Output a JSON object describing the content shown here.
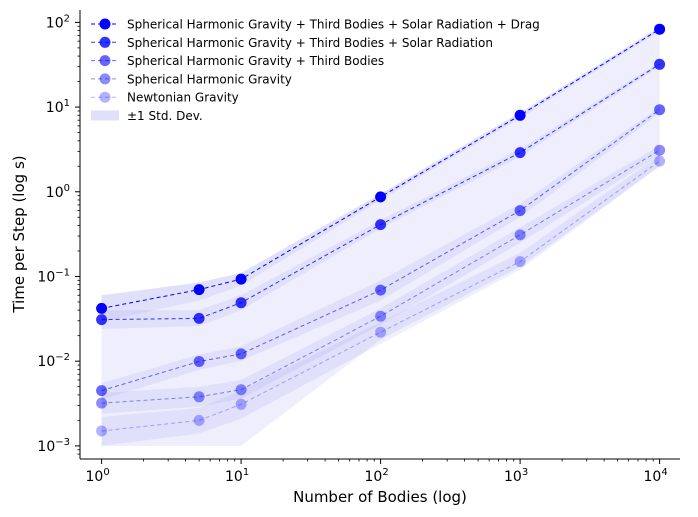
{
  "chart_data": {
    "type": "line",
    "xscale": "log",
    "yscale": "log",
    "xlabel": "Number of Bodies (log)",
    "ylabel": "Time per Step (log s)",
    "xlim": [
      0.7,
      14000
    ],
    "ylim": [
      0.0007,
      140
    ],
    "x": [
      1,
      5,
      10,
      100,
      1000,
      10000
    ],
    "x_ticks": [
      {
        "value": 1,
        "base": "10",
        "exp": "0"
      },
      {
        "value": 10,
        "base": "10",
        "exp": "1"
      },
      {
        "value": 100,
        "base": "10",
        "exp": "2"
      },
      {
        "value": 1000,
        "base": "10",
        "exp": "3"
      },
      {
        "value": 10000,
        "base": "10",
        "exp": "4"
      }
    ],
    "y_ticks": [
      {
        "value": 0.001,
        "base": "10",
        "exp": "−3"
      },
      {
        "value": 0.01,
        "base": "10",
        "exp": "−2"
      },
      {
        "value": 0.1,
        "base": "10",
        "exp": "−1"
      },
      {
        "value": 1,
        "base": "10",
        "exp": "0"
      },
      {
        "value": 10,
        "base": "10",
        "exp": "1"
      },
      {
        "value": 100,
        "base": "10",
        "exp": "2"
      }
    ],
    "series": [
      {
        "name": "Spherical Harmonic Gravity + Third Bodies + Solar Radiation + Drag",
        "opacity": 1.0,
        "values": [
          0.042,
          0.07,
          0.093,
          0.87,
          8.0,
          83
        ],
        "lower": [
          0.029,
          0.052,
          0.078,
          0.8,
          7.4,
          78
        ],
        "upper": [
          0.06,
          0.085,
          0.11,
          0.95,
          8.6,
          88
        ]
      },
      {
        "name": "Spherical Harmonic Gravity + Third Bodies + Solar Radiation",
        "opacity": 0.8,
        "values": [
          0.031,
          0.032,
          0.049,
          0.41,
          2.9,
          32
        ],
        "lower": [
          0.024,
          0.026,
          0.04,
          0.37,
          2.6,
          30
        ],
        "upper": [
          0.04,
          0.04,
          0.06,
          0.46,
          3.2,
          34
        ]
      },
      {
        "name": "Spherical Harmonic Gravity + Third Bodies",
        "opacity": 0.6,
        "values": [
          0.0045,
          0.0099,
          0.0122,
          0.069,
          0.6,
          9.3
        ],
        "lower": [
          0.0035,
          0.0079,
          0.0101,
          0.052,
          0.5,
          8.5
        ],
        "upper": [
          0.0055,
          0.012,
          0.015,
          0.09,
          0.72,
          10
        ]
      },
      {
        "name": "Spherical Harmonic Gravity",
        "opacity": 0.45,
        "values": [
          0.0032,
          0.0038,
          0.0046,
          0.034,
          0.31,
          3.1
        ],
        "lower": [
          0.0024,
          0.0029,
          0.0036,
          0.027,
          0.25,
          2.7
        ],
        "upper": [
          0.0042,
          0.005,
          0.006,
          0.042,
          0.38,
          3.5
        ]
      },
      {
        "name": "Newtonian Gravity",
        "opacity": 0.3,
        "values": [
          0.0015,
          0.002,
          0.0031,
          0.022,
          0.15,
          2.3
        ],
        "lower": [
          0.001,
          0.0014,
          0.0021,
          0.016,
          0.12,
          2.0
        ],
        "upper": [
          0.0022,
          0.0028,
          0.0045,
          0.029,
          0.19,
          2.7
        ]
      }
    ],
    "band": {
      "label": "±1 Std. Dev.",
      "lower": [
        0.001,
        0.001,
        0.001,
        0.018,
        0.13,
        2.0
      ],
      "upper": [
        0.06,
        0.085,
        0.11,
        0.95,
        8.6,
        88
      ]
    },
    "legend_position": "upper-left",
    "colors": {
      "series": "#0000ff",
      "band": "#7070ee",
      "axis": "#000000"
    }
  }
}
